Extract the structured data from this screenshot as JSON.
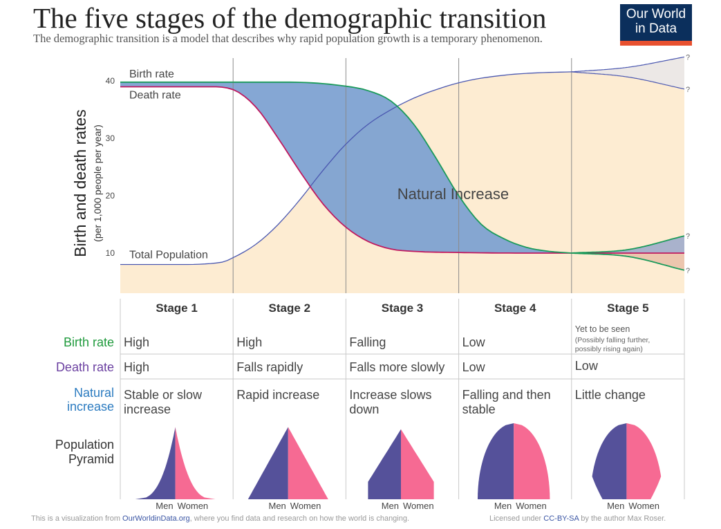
{
  "header": {
    "title": "The five stages of the demographic transition",
    "subtitle": "The demographic transition is a model that describes why rapid population growth is a temporary phenomenon.",
    "logo_line1": "Our World",
    "logo_line2": "in Data"
  },
  "chart_data": {
    "type": "line",
    "ylabel": "Birth and death rates",
    "ylabel_sub": "(per 1,000 people per year)",
    "yticks": [
      10,
      20,
      30,
      40
    ],
    "ylim": [
      3,
      44
    ],
    "xlim": [
      0,
      5
    ],
    "grid": false,
    "stage_boundaries": [
      1,
      2,
      3,
      4
    ],
    "annotation": "Natural Increase",
    "uncertain_marker": "?",
    "series": [
      {
        "name": "Birth rate",
        "color": "#1a9a5a",
        "x": [
          0,
          0.5,
          1,
          1.5,
          2,
          2.2,
          2.4,
          2.6,
          2.8,
          3,
          3.2,
          3.4,
          3.6,
          3.8,
          4
        ],
        "y": [
          39.8,
          39.8,
          39.8,
          39.8,
          39.1,
          38.3,
          36.5,
          32.5,
          26.5,
          20,
          15,
          12.5,
          11,
          10.3,
          10
        ]
      },
      {
        "name": "Death rate",
        "color": "#c0185e",
        "x": [
          0,
          0.5,
          0.8,
          1,
          1.2,
          1.4,
          1.6,
          1.8,
          2,
          2.2,
          2.4,
          2.6,
          3,
          3.5,
          4
        ],
        "y": [
          39,
          39,
          39,
          38.5,
          35.5,
          30,
          24,
          18.5,
          14.5,
          12,
          10.7,
          10.3,
          10.1,
          10,
          10
        ]
      },
      {
        "name": "Total Population",
        "color": "#4a57b0",
        "x": [
          0,
          0.5,
          0.9,
          1,
          1.2,
          1.4,
          1.6,
          1.8,
          2,
          2.2,
          2.4,
          2.6,
          2.8,
          3,
          3.2,
          3.5,
          3.8,
          4
        ],
        "y": [
          8,
          8,
          8.4,
          9.2,
          11.5,
          15,
          19.5,
          24.5,
          29,
          32.5,
          35,
          37,
          38.5,
          39.7,
          40.5,
          41.2,
          41.5,
          41.6
        ]
      }
    ],
    "stage5_projection": {
      "x": [
        4,
        4.5,
        5
      ],
      "birth_high": [
        10,
        10.6,
        13
      ],
      "birth_low": [
        10,
        9.4,
        7
      ],
      "death": [
        10,
        10,
        10
      ],
      "population_high": [
        41.6,
        42.4,
        44.2
      ],
      "population_low": [
        41.6,
        40.7,
        38.6
      ]
    },
    "colors": {
      "natural_increase_fill": "#7b9fd0",
      "population_fill": "#fdecd2",
      "projection_fill": "#ece8e6",
      "stage5_increase_fill": "#a9b2cc",
      "stage5_decrease_fill": "#ecc6ae"
    }
  },
  "table": {
    "stages": [
      "Stage 1",
      "Stage 2",
      "Stage 3",
      "Stage 4",
      "Stage 5"
    ],
    "row_labels": {
      "birth_rate": "Birth rate",
      "death_rate": "Death rate",
      "natural_increase": [
        "Natural",
        "increase"
      ],
      "pyramid": [
        "Population",
        "Pyramid"
      ]
    },
    "row_label_colors": {
      "birth_rate": "#1f9a3c",
      "death_rate": "#6a3fa0",
      "natural_increase": "#2b7bc0",
      "pyramid": "#333333"
    },
    "birth_rate": [
      "High",
      "High",
      "Falling",
      "Low",
      "Yet to be seen"
    ],
    "birth_rate_note": [
      "(Possibly falling further,",
      "possibly rising again)"
    ],
    "death_rate": [
      "High",
      "Falls rapidly",
      "Falls more slowly",
      "Low",
      "Low"
    ],
    "natural_increase": [
      [
        "Stable or slow",
        "increase"
      ],
      [
        "Rapid increase"
      ],
      [
        "Increase slows",
        "down"
      ],
      [
        "Falling and then",
        "stable"
      ],
      [
        "Little change"
      ]
    ],
    "pyramid_labels": {
      "men": "Men",
      "women": "Women"
    },
    "pyramid_colors": {
      "men": "#55519a",
      "women": "#f66a93"
    }
  },
  "footer": {
    "left_pre": "This is a visualization from ",
    "left_link": "OurWorldinData.org",
    "left_post": ", where you find data and research on how the world is changing.",
    "right_pre": "Licensed under ",
    "right_link": "CC-BY-SA",
    "right_post": " by the author Max Roser."
  }
}
